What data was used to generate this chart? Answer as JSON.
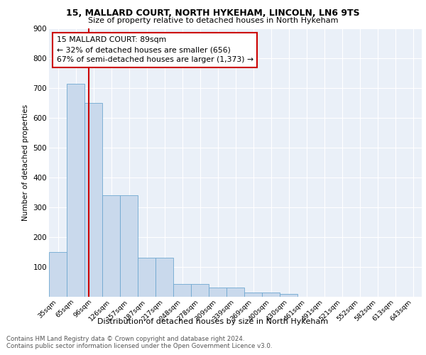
{
  "title1": "15, MALLARD COURT, NORTH HYKEHAM, LINCOLN, LN6 9TS",
  "title2": "Size of property relative to detached houses in North Hykeham",
  "xlabel": "Distribution of detached houses by size in North Hykeham",
  "ylabel": "Number of detached properties",
  "bin_labels": [
    "35sqm",
    "65sqm",
    "96sqm",
    "126sqm",
    "157sqm",
    "187sqm",
    "217sqm",
    "248sqm",
    "278sqm",
    "309sqm",
    "339sqm",
    "369sqm",
    "400sqm",
    "430sqm",
    "461sqm",
    "491sqm",
    "521sqm",
    "552sqm",
    "582sqm",
    "613sqm",
    "643sqm"
  ],
  "bar_heights": [
    150,
    715,
    650,
    340,
    340,
    130,
    130,
    42,
    42,
    30,
    30,
    12,
    12,
    8,
    0,
    0,
    0,
    0,
    0,
    0,
    0
  ],
  "annotation_text": "15 MALLARD COURT: 89sqm\n← 32% of detached houses are smaller (656)\n67% of semi-detached houses are larger (1,373) →",
  "bar_color": "#c9d9ec",
  "bar_edge_color": "#6fa8d0",
  "line_color": "#cc0000",
  "annotation_box_color": "#cc0000",
  "background_color": "#eaf0f8",
  "grid_color": "#ffffff",
  "footer_text": "Contains HM Land Registry data © Crown copyright and database right 2024.\nContains public sector information licensed under the Open Government Licence v3.0.",
  "ylim": [
    0,
    900
  ],
  "yticks": [
    0,
    100,
    200,
    300,
    400,
    500,
    600,
    700,
    800,
    900
  ],
  "line_x_index": 1.75
}
